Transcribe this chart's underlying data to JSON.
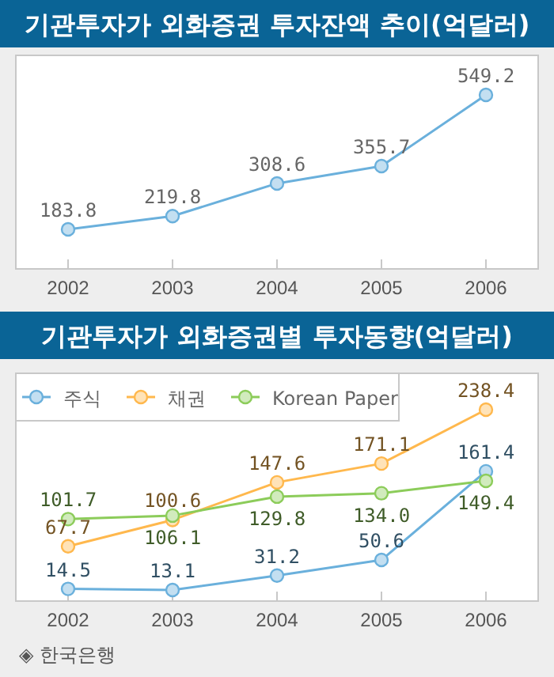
{
  "chart_data": [
    {
      "type": "line",
      "title": "기관투자가 외화증권 투자잔액 추이(억달러)",
      "categories": [
        "2002",
        "2003",
        "2004",
        "2005",
        "2006"
      ],
      "series": [
        {
          "color": "#6ab0dc",
          "values": [
            183.8,
            219.8,
            308.6,
            355.7,
            549.2
          ]
        }
      ],
      "data_labels": true,
      "marker": "circle",
      "grid": false,
      "legend": false
    },
    {
      "type": "line",
      "title": "기관투자가 외화증권별 투자동향(억달러)",
      "categories": [
        "2002",
        "2003",
        "2004",
        "2005",
        "2006"
      ],
      "series": [
        {
          "name": "주식",
          "color": "#6ab0dc",
          "values": [
            14.5,
            13.1,
            31.2,
            50.6,
            161.4
          ],
          "value_labels": [
            "14.5",
            "13.1",
            "31.2",
            "50.6",
            "161.4"
          ]
        },
        {
          "name": "채권",
          "color": "#ffb84d",
          "values": [
            67.7,
            100.6,
            147.6,
            171.1,
            238.4
          ],
          "value_labels": [
            "67.7",
            "100.6",
            "147.6",
            "171.1",
            "238.4"
          ]
        },
        {
          "name": "Korean Paper",
          "color": "#8ccc5a",
          "values": [
            101.7,
            106.1,
            129.8,
            134.0,
            149.4
          ],
          "value_labels": [
            "101.7",
            "106.1",
            "129.8",
            "134.0",
            "149.4"
          ]
        }
      ],
      "marker": "circle",
      "grid": false,
      "legend": "top left",
      "annotations": [
        "◈ 한국은행"
      ]
    }
  ]
}
